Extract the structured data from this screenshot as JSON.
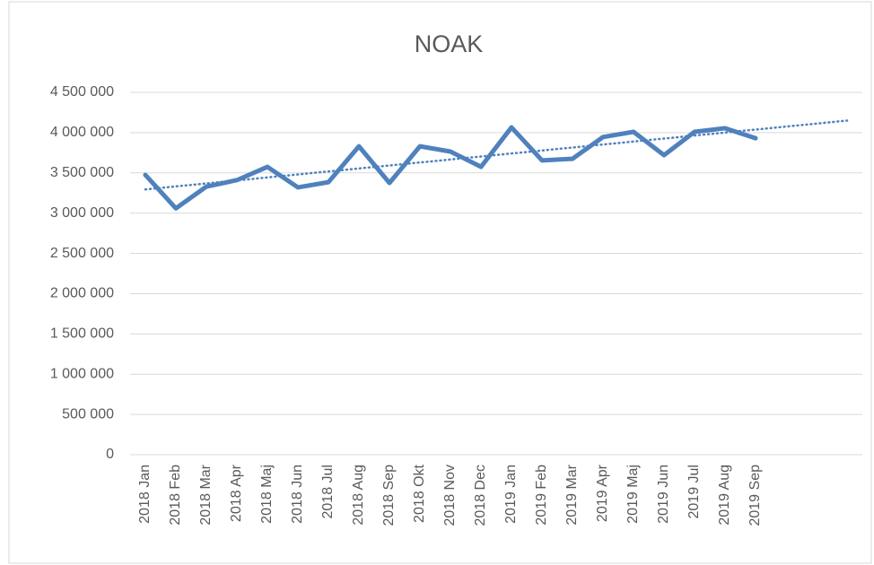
{
  "chart_data": {
    "type": "line",
    "title": "NOAK",
    "categories": [
      "2018 Jan",
      "2018 Feb",
      "2018 Mar",
      "2018 Apr",
      "2018 Maj",
      "2018 Jun",
      "2018 Jul",
      "2018 Aug",
      "2018 Sep",
      "2018 Okt",
      "2018 Nov",
      "2018 Dec",
      "2019 Jan",
      "2019 Feb",
      "2019 Mar",
      "2019 Apr",
      "2019 Maj",
      "2019 Jun",
      "2019 Jul",
      "2019 Aug",
      "2019 Sep"
    ],
    "values": [
      3475000,
      3060000,
      3330000,
      3410000,
      3575000,
      3320000,
      3385000,
      3830000,
      3375000,
      3830000,
      3765000,
      3575000,
      4065000,
      3655000,
      3675000,
      3945000,
      4010000,
      3720000,
      4010000,
      4055000,
      3930000
    ],
    "color": "#4f81bd",
    "ylim": [
      0,
      4500000
    ],
    "yticks": [
      0,
      {
        "value": 500000,
        "label": "500 000"
      },
      {
        "value": 1000000,
        "label": "1 000 000"
      },
      {
        "value": 1500000,
        "label": "1 500 000"
      },
      {
        "value": 2000000,
        "label": "2 000 000"
      },
      {
        "value": 2500000,
        "label": "2 500 000"
      },
      {
        "value": 3000000,
        "label": "3 000 000"
      },
      {
        "value": 3500000,
        "label": "3 500 000"
      },
      {
        "value": 4000000,
        "label": "4 000 000"
      },
      {
        "value": 4500000,
        "label": "4 500 000"
      }
    ],
    "grid": true,
    "trendline": {
      "type": "linear",
      "forward": 3
    }
  }
}
